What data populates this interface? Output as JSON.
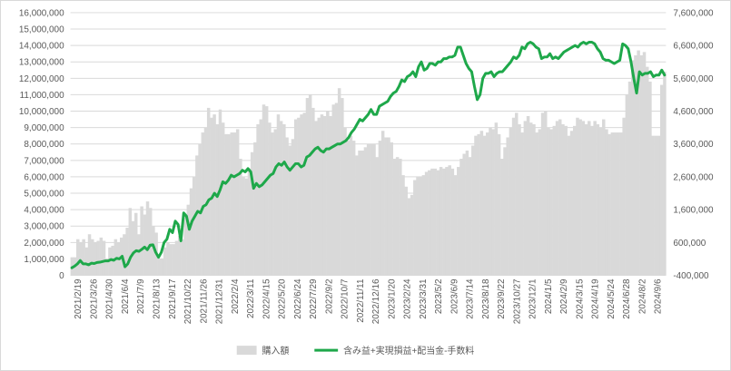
{
  "chart_data": {
    "type": "bar+line",
    "title": "",
    "legend": {
      "placement": "bottom",
      "items": [
        {
          "name": "購入額",
          "kind": "bar",
          "color": "#d9d9d9"
        },
        {
          "name": "含み益+実現損益+配当金-手数料",
          "kind": "line",
          "color": "#1ea84a"
        }
      ]
    },
    "y_left": {
      "min": 0,
      "max": 16000000,
      "step": 1000000,
      "tick_labels": [
        "0",
        "1,000,000",
        "2,000,000",
        "3,000,000",
        "4,000,000",
        "5,000,000",
        "6,000,000",
        "7,000,000",
        "8,000,000",
        "9,000,000",
        "10,000,000",
        "11,000,000",
        "12,000,000",
        "13,000,000",
        "14,000,000",
        "15,000,000",
        "16,000,000"
      ]
    },
    "y_right": {
      "min": -400000,
      "max": 7600000,
      "step": 1000000,
      "tick_labels": [
        "-400,000",
        "600,000",
        "1,600,000",
        "2,600,000",
        "3,600,000",
        "4,600,000",
        "5,600,000",
        "6,600,000",
        "7,600,000"
      ]
    },
    "x_tick_labels": [
      "2021/2/19",
      "2021/3/26",
      "2021/4/30",
      "2021/6/4",
      "2021/7/9",
      "2021/8/13",
      "2021/9/17",
      "2021/10/22",
      "2021/11/26",
      "2021/12/31",
      "2022/2/4",
      "2022/3/11",
      "2022/4/15",
      "2022/5/20",
      "2022/6/24",
      "2022/7/29",
      "2022/9/2",
      "2022/10/7",
      "2022/11/11",
      "2022/12/16",
      "2023/1/20",
      "2023/2/24",
      "2023/3/31",
      "2023/5/2",
      "2023/6/9",
      "2023/7/14",
      "2023/8/18",
      "2023/9/22",
      "2023/10/27",
      "2023/12/1",
      "2024/1/5",
      "2024/2/9",
      "2024/3/15",
      "2024/4/19",
      "2024/5/24",
      "2024/6/28",
      "2024/8/2",
      "2024/9/6"
    ],
    "series": [
      {
        "name": "購入額",
        "axis": "left",
        "kind": "bar",
        "color": "#d9d9d9",
        "values": [
          1100000,
          1100000,
          2200000,
          2000000,
          2200000,
          1700000,
          2500000,
          2200000,
          2000000,
          2100000,
          2300000,
          2100000,
          1000000,
          1700000,
          1800000,
          2200000,
          2000000,
          2300000,
          2500000,
          2900000,
          4100000,
          3300000,
          3800000,
          2500000,
          4200000,
          3700000,
          4500000,
          4100000,
          3000000,
          2600000,
          1000000,
          1000000,
          1700000,
          2000000,
          1900000,
          1900000,
          2100000,
          2400000,
          2200000,
          3700000,
          4300000,
          5300000,
          6000000,
          7300000,
          8000000,
          8700000,
          9000000,
          10200000,
          9600000,
          9800000,
          9200000,
          10100000,
          9300000,
          8600000,
          8600000,
          8700000,
          8700000,
          8900000,
          7100000,
          6000000,
          5900000,
          6500000,
          7500000,
          8100000,
          9200000,
          9500000,
          10400000,
          10300000,
          9300000,
          8700000,
          8900000,
          9800000,
          9400000,
          9200000,
          8400000,
          7900000,
          8300000,
          9500000,
          9600000,
          9800000,
          9900000,
          10800000,
          11000000,
          10200000,
          9400000,
          9600000,
          9800000,
          9700000,
          10000000,
          9700000,
          10400000,
          10500000,
          11400000,
          10800000,
          9000000,
          8200000,
          8500000,
          8200000,
          7300000,
          7600000,
          7600000,
          7800000,
          8000000,
          8000000,
          8000000,
          7200000,
          8200000,
          8800000,
          8400000,
          8400000,
          8100000,
          7100000,
          7200000,
          7100000,
          6100000,
          5400000,
          4700000,
          4900000,
          5800000,
          6000000,
          6000000,
          6100000,
          6300000,
          6400000,
          6500000,
          6500000,
          6400000,
          6600000,
          6500000,
          6600000,
          6700000,
          6500000,
          6100000,
          6600000,
          7100000,
          7400000,
          7600000,
          7200000,
          7900000,
          8500000,
          8600000,
          8800000,
          8500000,
          8700000,
          9000000,
          8900000,
          9300000,
          8600000,
          7100000,
          7800000,
          8400000,
          9000000,
          9600000,
          9900000,
          9200000,
          8700000,
          9400000,
          9700000,
          9300000,
          9200000,
          8700000,
          8900000,
          9900000,
          10000000,
          9000000,
          8900000,
          9100000,
          9400000,
          9500000,
          9200000,
          9100000,
          8500000,
          8800000,
          9100000,
          9600000,
          9500000,
          9400000,
          9200000,
          9400000,
          9100000,
          9400000,
          9200000,
          9000000,
          9500000,
          8900000,
          8600000,
          8700000,
          8700000,
          8700000,
          8700000,
          9600000,
          11000000,
          11800000,
          13100000,
          13400000,
          13700000,
          13400000,
          13600000,
          12700000,
          11800000,
          8500000,
          8500000,
          8500000,
          11600000,
          12400000
        ]
      },
      {
        "name": "含み益+実現損益+配当金-手数料",
        "axis": "right",
        "kind": "line",
        "color": "#1ea84a",
        "values": [
          -170000,
          -120000,
          -50000,
          50000,
          -50000,
          -50000,
          -80000,
          -30000,
          -40000,
          -10000,
          0,
          20000,
          40000,
          40000,
          80000,
          60000,
          120000,
          100000,
          180000,
          -140000,
          -50000,
          150000,
          280000,
          350000,
          330000,
          390000,
          460000,
          380000,
          520000,
          530000,
          300000,
          150000,
          300000,
          600000,
          700000,
          1000000,
          900000,
          1250000,
          1150000,
          650000,
          1500000,
          1400000,
          1000000,
          1250000,
          1400000,
          1550000,
          1500000,
          1700000,
          1750000,
          1900000,
          1950000,
          2100000,
          2000000,
          2200000,
          2450000,
          2400000,
          2500000,
          2650000,
          2600000,
          2650000,
          2700000,
          2800000,
          2750000,
          2850000,
          2750000,
          2250000,
          2400000,
          2300000,
          2350000,
          2450000,
          2550000,
          2650000,
          2700000,
          2900000,
          3000000,
          2950000,
          3050000,
          2900000,
          2800000,
          2900000,
          3000000,
          3000000,
          2900000,
          2950000,
          3200000,
          3250000,
          3350000,
          3450000,
          3500000,
          3400000,
          3350000,
          3450000,
          3450000,
          3500000,
          3550000,
          3600000,
          3600000,
          3650000,
          3700000,
          3800000,
          3950000,
          4050000,
          4200000,
          4350000,
          4300000,
          4400000,
          4500000,
          4650000,
          4500000,
          4500000,
          4750000,
          4800000,
          4850000,
          4900000,
          5050000,
          5150000,
          5200000,
          5350000,
          5550000,
          5500000,
          5650000,
          5700000,
          5800000,
          5650000,
          5950000,
          6100000,
          5850000,
          5900000,
          6050000,
          6050000,
          6000000,
          6100000,
          6100000,
          6200000,
          6200000,
          6250000,
          6250000,
          6300000,
          6550000,
          6550000,
          6300000,
          6050000,
          5900000,
          5800000,
          5350000,
          4950000,
          5100000,
          5600000,
          5750000,
          5750000,
          5800000,
          5650000,
          5750000,
          5800000,
          5800000,
          5900000,
          6000000,
          6100000,
          6250000,
          6200000,
          6300000,
          6550000,
          6500000,
          6650000,
          6700000,
          6650000,
          6550000,
          6500000,
          6200000,
          6250000,
          6250000,
          6350000,
          6200000,
          6250000,
          6200000,
          6300000,
          6400000,
          6450000,
          6500000,
          6550000,
          6600000,
          6550000,
          6650000,
          6700000,
          6650000,
          6700000,
          6700000,
          6650000,
          6500000,
          6400000,
          6200000,
          6150000,
          6150000,
          6100000,
          6050000,
          6100000,
          6150000,
          6650000,
          6600000,
          6500000,
          6100000,
          5600000,
          5150000,
          5800000,
          5700000,
          5750000,
          5750000,
          5800000,
          5650000,
          5700000,
          5700000,
          5850000,
          5700000
        ]
      }
    ]
  }
}
